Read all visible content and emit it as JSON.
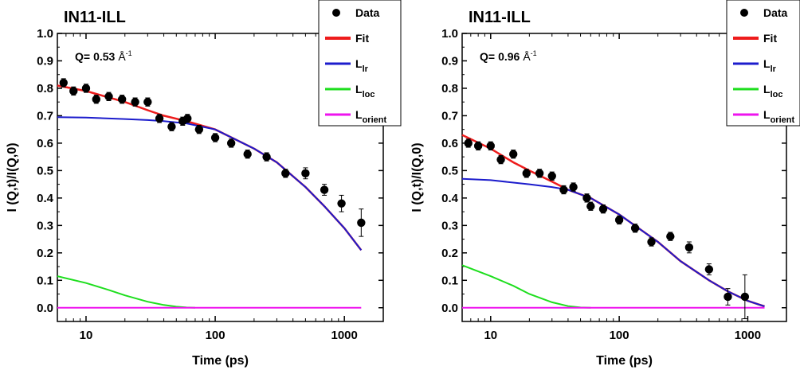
{
  "chart_data": [
    {
      "type": "scatter",
      "title": "IN11-ILL",
      "annotation": {
        "prefix": "Q=",
        "value": "0.53",
        "unit": "Å",
        "unit_exp": "-1"
      },
      "xlabel": "Time (ps)",
      "ylabel": "I (Q,t)/I(Q,0)",
      "xscale": "log",
      "xlim": [
        6,
        2000
      ],
      "ylim": [
        -0.05,
        1.0
      ],
      "xticks": [
        10,
        100,
        1000
      ],
      "xtick_labels": [
        "10",
        "100",
        "1000"
      ],
      "yticks": [
        0.0,
        0.1,
        0.2,
        0.3,
        0.4,
        0.5,
        0.6,
        0.7,
        0.8,
        0.9,
        1.0
      ],
      "ytick_labels": [
        "0.0",
        "0.1",
        "0.2",
        "0.3",
        "0.4",
        "0.5",
        "0.6",
        "0.7",
        "0.8",
        "0.9",
        "1.0"
      ],
      "legend_position": "top-right",
      "series": [
        {
          "name": "Data",
          "kind": "points",
          "color": "#000000",
          "x": [
            6.7,
            8,
            10,
            12,
            15,
            19,
            24,
            30,
            37,
            46,
            56,
            61,
            75,
            100,
            133,
            178,
            250,
            350,
            500,
            700,
            950,
            1350
          ],
          "y": [
            0.82,
            0.79,
            0.8,
            0.76,
            0.77,
            0.76,
            0.75,
            0.75,
            0.69,
            0.66,
            0.68,
            0.69,
            0.65,
            0.62,
            0.6,
            0.56,
            0.55,
            0.49,
            0.49,
            0.43,
            0.38,
            0.31
          ],
          "err": [
            0.015,
            0.015,
            0.015,
            0.015,
            0.015,
            0.015,
            0.015,
            0.015,
            0.015,
            0.015,
            0.015,
            0.015,
            0.015,
            0.015,
            0.015,
            0.015,
            0.015,
            0.015,
            0.02,
            0.02,
            0.03,
            0.05
          ]
        },
        {
          "name": "Fit",
          "kind": "line",
          "color": "#ee1c1c",
          "x": [
            6,
            10,
            20,
            30,
            40,
            60,
            100,
            200,
            300,
            500,
            700,
            1000,
            1350
          ],
          "y": [
            0.81,
            0.79,
            0.75,
            0.72,
            0.7,
            0.68,
            0.65,
            0.58,
            0.53,
            0.44,
            0.37,
            0.29,
            0.21
          ]
        },
        {
          "name": "L",
          "sub": "lr",
          "kind": "line",
          "color": "#1c1ccc",
          "x": [
            6,
            10,
            20,
            30,
            40,
            60,
            100,
            200,
            300,
            500,
            700,
            1000,
            1350
          ],
          "y": [
            0.695,
            0.693,
            0.688,
            0.684,
            0.68,
            0.672,
            0.65,
            0.58,
            0.53,
            0.44,
            0.37,
            0.29,
            0.21
          ]
        },
        {
          "name": "L",
          "sub": "loc",
          "kind": "line",
          "color": "#1ede1e",
          "x": [
            6,
            10,
            15,
            20,
            30,
            40,
            50,
            60,
            70
          ],
          "y": [
            0.115,
            0.09,
            0.065,
            0.045,
            0.022,
            0.01,
            0.004,
            0.001,
            0.0
          ]
        },
        {
          "name": "L",
          "sub": "orient",
          "kind": "line",
          "color": "#ee14ee",
          "x": [
            6,
            1350
          ],
          "y": [
            0.0,
            0.0
          ]
        }
      ]
    },
    {
      "type": "scatter",
      "title": "IN11-ILL",
      "annotation": {
        "prefix": "Q=",
        "value": "0.96",
        "unit": "Å",
        "unit_exp": "-1"
      },
      "xlabel": "Time (ps)",
      "ylabel": "I (Q,t)/I(Q,0)",
      "xscale": "log",
      "xlim": [
        6,
        2000
      ],
      "ylim": [
        -0.05,
        1.0
      ],
      "xticks": [
        10,
        100,
        1000
      ],
      "xtick_labels": [
        "10",
        "100",
        "1000"
      ],
      "yticks": [
        0.0,
        0.1,
        0.2,
        0.3,
        0.4,
        0.5,
        0.6,
        0.7,
        0.8,
        0.9,
        1.0
      ],
      "ytick_labels": [
        "0.0",
        "0.1",
        "0.2",
        "0.3",
        "0.4",
        "0.5",
        "0.6",
        "0.7",
        "0.8",
        "0.9",
        "1.0"
      ],
      "legend_position": "top-right",
      "series": [
        {
          "name": "Data",
          "kind": "points",
          "color": "#000000",
          "x": [
            6.7,
            8,
            10,
            12,
            15,
            19,
            24,
            30,
            37,
            44,
            56,
            60,
            75,
            100,
            133,
            178,
            250,
            350,
            500,
            700,
            950
          ],
          "y": [
            0.6,
            0.59,
            0.59,
            0.54,
            0.56,
            0.49,
            0.49,
            0.48,
            0.43,
            0.44,
            0.4,
            0.37,
            0.36,
            0.32,
            0.29,
            0.24,
            0.26,
            0.22,
            0.14,
            0.04,
            0.04
          ],
          "err": [
            0.015,
            0.015,
            0.015,
            0.015,
            0.015,
            0.015,
            0.015,
            0.015,
            0.015,
            0.015,
            0.015,
            0.015,
            0.015,
            0.015,
            0.015,
            0.015,
            0.015,
            0.02,
            0.02,
            0.03,
            0.08
          ]
        },
        {
          "name": "Fit",
          "kind": "line",
          "color": "#ee1c1c",
          "x": [
            6,
            10,
            15,
            20,
            30,
            40,
            60,
            100,
            200,
            300,
            500,
            700,
            1000,
            1350
          ],
          "y": [
            0.63,
            0.58,
            0.53,
            0.5,
            0.46,
            0.43,
            0.4,
            0.34,
            0.24,
            0.17,
            0.1,
            0.06,
            0.025,
            0.005
          ]
        },
        {
          "name": "L",
          "sub": "lr",
          "kind": "line",
          "color": "#1c1ccc",
          "x": [
            6,
            10,
            20,
            30,
            40,
            60,
            100,
            200,
            300,
            500,
            700,
            1000,
            1350
          ],
          "y": [
            0.47,
            0.465,
            0.45,
            0.44,
            0.43,
            0.4,
            0.34,
            0.24,
            0.17,
            0.1,
            0.06,
            0.025,
            0.005
          ]
        },
        {
          "name": "L",
          "sub": "loc",
          "kind": "line",
          "color": "#1ede1e",
          "x": [
            6,
            10,
            15,
            20,
            30,
            40,
            50,
            60
          ],
          "y": [
            0.155,
            0.115,
            0.08,
            0.05,
            0.02,
            0.006,
            0.001,
            0.0
          ]
        },
        {
          "name": "L",
          "sub": "orient",
          "kind": "line",
          "color": "#ee14ee",
          "x": [
            6,
            1350
          ],
          "y": [
            0.0,
            0.0
          ]
        }
      ]
    }
  ]
}
